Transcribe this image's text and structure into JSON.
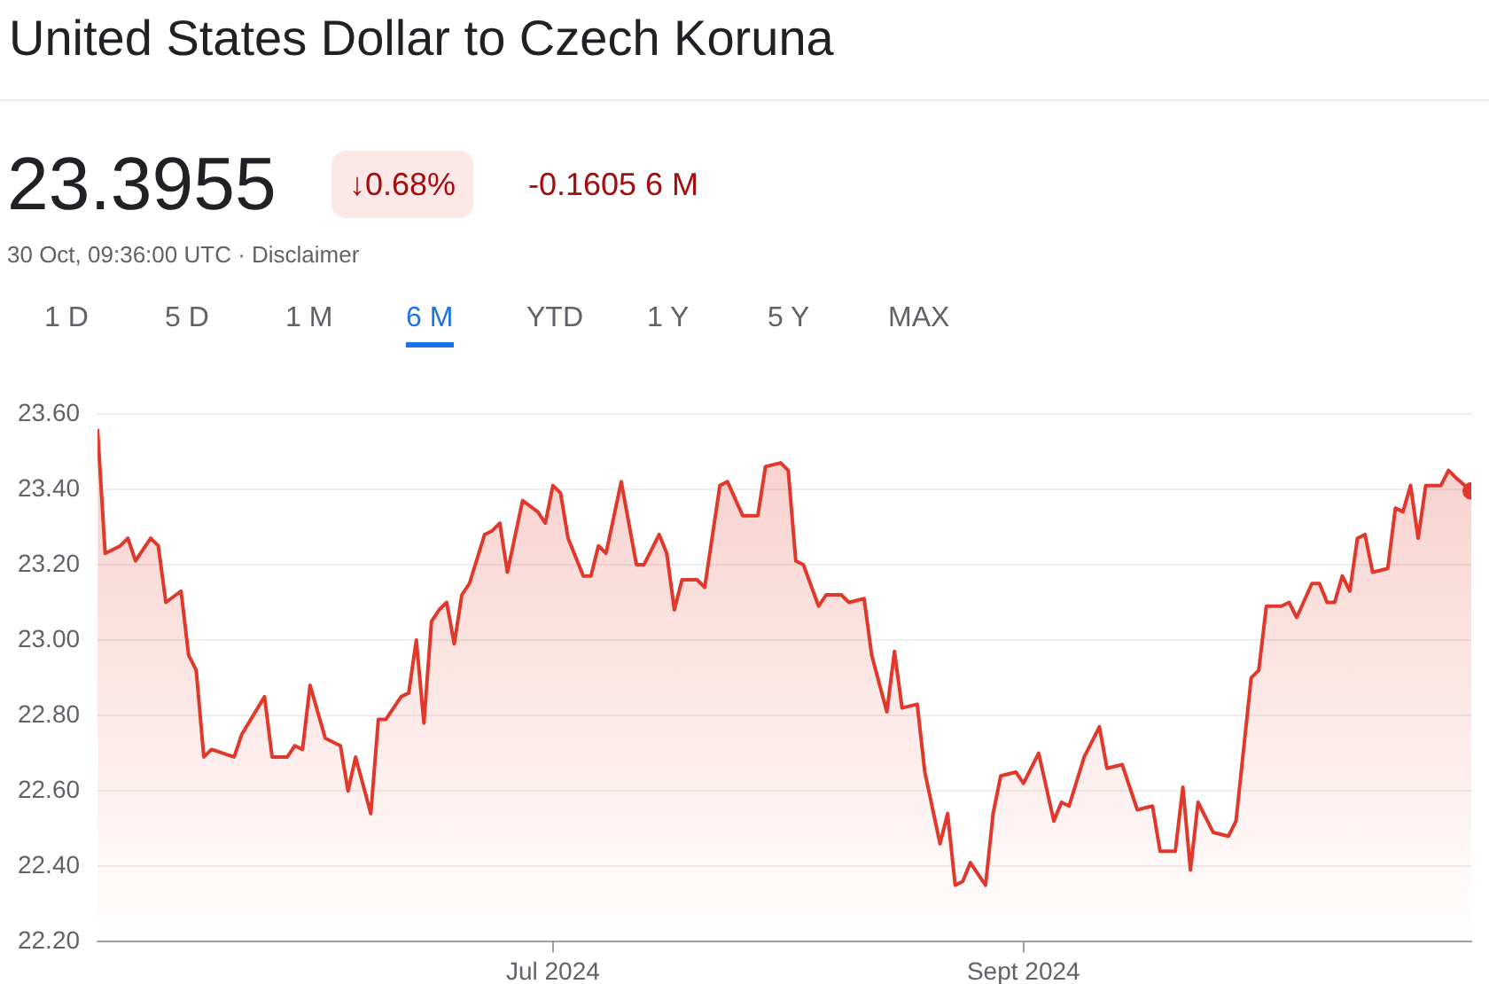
{
  "chart_data": {
    "type": "area",
    "title": "United States Dollar to Czech Koruna",
    "annotations": [
      "23.3955",
      "↓0.68%",
      "-0.1605 6 M",
      "30 Oct, 09:36:00 UTC · Disclaimer",
      "1 D",
      "5 D",
      "1 M",
      "6 M",
      "YTD",
      "1 Y",
      "5 Y",
      "MAX"
    ],
    "x": [
      "2024-05-02",
      "2024-05-03",
      "2024-05-05",
      "2024-05-06",
      "2024-05-07",
      "2024-05-09",
      "2024-05-10",
      "2024-05-11",
      "2024-05-13",
      "2024-05-14",
      "2024-05-15",
      "2024-05-16",
      "2024-05-17",
      "2024-05-20",
      "2024-05-21",
      "2024-05-24",
      "2024-05-25",
      "2024-05-27",
      "2024-05-28",
      "2024-05-29",
      "2024-05-30",
      "2024-06-01",
      "2024-06-03",
      "2024-06-04",
      "2024-06-05",
      "2024-06-07",
      "2024-06-08",
      "2024-06-09",
      "2024-06-11",
      "2024-06-12",
      "2024-06-13",
      "2024-06-14",
      "2024-06-15",
      "2024-06-16",
      "2024-06-17",
      "2024-06-18",
      "2024-06-19",
      "2024-06-20",
      "2024-06-22",
      "2024-06-23",
      "2024-06-24",
      "2024-06-25",
      "2024-06-27",
      "2024-06-29",
      "2024-06-30",
      "2024-07-01",
      "2024-07-02",
      "2024-07-03",
      "2024-07-05",
      "2024-07-06",
      "2024-07-07",
      "2024-07-08",
      "2024-07-10",
      "2024-07-12",
      "2024-07-13",
      "2024-07-15",
      "2024-07-16",
      "2024-07-17",
      "2024-07-18",
      "2024-07-20",
      "2024-07-21",
      "2024-07-23",
      "2024-07-24",
      "2024-07-26",
      "2024-07-28",
      "2024-07-29",
      "2024-07-31",
      "2024-08-01",
      "2024-08-02",
      "2024-08-03",
      "2024-08-05",
      "2024-08-06",
      "2024-08-08",
      "2024-08-09",
      "2024-08-11",
      "2024-08-12",
      "2024-08-14",
      "2024-08-15",
      "2024-08-16",
      "2024-08-18",
      "2024-08-19",
      "2024-08-21",
      "2024-08-22",
      "2024-08-23",
      "2024-08-24",
      "2024-08-25",
      "2024-08-27",
      "2024-08-28",
      "2024-08-29",
      "2024-08-31",
      "2024-09-01",
      "2024-09-03",
      "2024-09-05",
      "2024-09-06",
      "2024-09-07",
      "2024-09-09",
      "2024-09-11",
      "2024-09-12",
      "2024-09-14",
      "2024-09-16",
      "2024-09-18",
      "2024-09-19",
      "2024-09-21",
      "2024-09-22",
      "2024-09-23",
      "2024-09-24",
      "2024-09-26",
      "2024-09-28",
      "2024-09-29",
      "2024-10-01",
      "2024-10-02",
      "2024-10-03",
      "2024-10-05",
      "2024-10-06",
      "2024-10-07",
      "2024-10-09",
      "2024-10-10",
      "2024-10-11",
      "2024-10-12",
      "2024-10-13",
      "2024-10-14",
      "2024-10-15",
      "2024-10-16",
      "2024-10-17",
      "2024-10-19",
      "2024-10-20",
      "2024-10-21",
      "2024-10-22",
      "2024-10-23",
      "2024-10-24",
      "2024-10-26",
      "2024-10-27",
      "2024-10-28",
      "2024-10-30"
    ],
    "series": [
      {
        "color": "#e0392b",
        "values": [
          23.56,
          23.23,
          23.25,
          23.27,
          23.21,
          23.27,
          23.25,
          23.1,
          23.13,
          22.96,
          22.92,
          22.69,
          22.71,
          22.69,
          22.75,
          22.85,
          22.69,
          22.69,
          22.72,
          22.71,
          22.88,
          22.74,
          22.72,
          22.6,
          22.69,
          22.54,
          22.79,
          22.79,
          22.85,
          22.86,
          23.0,
          22.78,
          23.05,
          23.08,
          23.1,
          22.99,
          23.12,
          23.15,
          23.28,
          23.29,
          23.31,
          23.18,
          23.37,
          23.34,
          23.31,
          23.41,
          23.39,
          23.27,
          23.17,
          23.17,
          23.25,
          23.23,
          23.42,
          23.2,
          23.2,
          23.28,
          23.23,
          23.08,
          23.16,
          23.16,
          23.14,
          23.41,
          23.42,
          23.33,
          23.33,
          23.46,
          23.47,
          23.45,
          23.21,
          23.2,
          23.09,
          23.12,
          23.12,
          23.1,
          23.11,
          22.96,
          22.81,
          22.97,
          22.82,
          22.83,
          22.65,
          22.46,
          22.54,
          22.35,
          22.36,
          22.41,
          22.35,
          22.54,
          22.64,
          22.65,
          22.62,
          22.7,
          22.52,
          22.57,
          22.56,
          22.69,
          22.77,
          22.66,
          22.67,
          22.55,
          22.56,
          22.44,
          22.44,
          22.61,
          22.39,
          22.57,
          22.49,
          22.48,
          22.52,
          22.9,
          22.92,
          23.09,
          23.09,
          23.1,
          23.06,
          23.15,
          23.15,
          23.1,
          23.1,
          23.17,
          23.13,
          23.27,
          23.28,
          23.18,
          23.19,
          23.35,
          23.34,
          23.41,
          23.27,
          23.41,
          23.41,
          23.45,
          23.43,
          23.3955
        ]
      }
    ],
    "xlim": [
      "2024-05-02",
      "2024-10-30"
    ],
    "xticks": [
      {
        "value": "2024-07-01",
        "label": "Jul 2024"
      },
      {
        "value": "2024-09-01",
        "label": "Sept 2024"
      }
    ],
    "ylim": [
      22.2,
      23.6
    ],
    "yticks": [
      {
        "value": 22.2,
        "label": "22.20"
      },
      {
        "value": 22.4,
        "label": "22.40"
      },
      {
        "value": 22.6,
        "label": "22.60"
      },
      {
        "value": 22.8,
        "label": "22.80"
      },
      {
        "value": 23.0,
        "label": "23.00"
      },
      {
        "value": 23.2,
        "label": "23.20"
      },
      {
        "value": 23.4,
        "label": "23.40"
      },
      {
        "value": 23.6,
        "label": "23.60"
      }
    ],
    "grid": "y",
    "legend": false
  }
}
